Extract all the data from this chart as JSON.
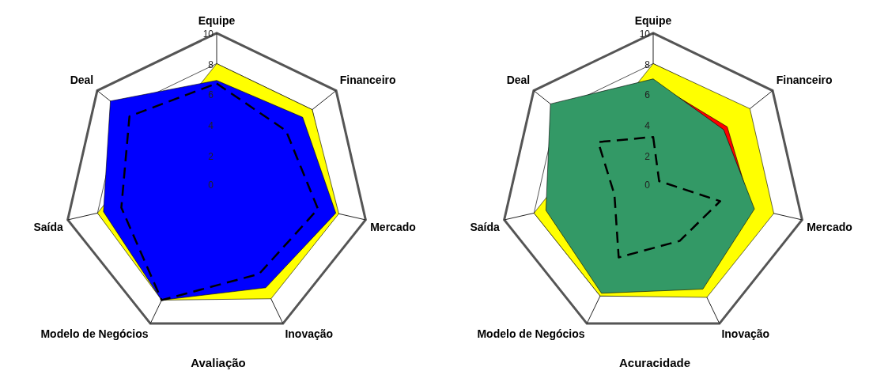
{
  "chart_data": [
    {
      "type": "radar",
      "title": "Avaliação",
      "categories": [
        "Equipe",
        "Financeiro",
        "Mercado",
        "Inovação",
        "Modelo de Negócios",
        "Saída",
        "Deal"
      ],
      "ylim": [
        0,
        10
      ],
      "yticks": [
        0,
        2,
        4,
        6,
        8,
        10
      ],
      "grid": true,
      "legend": false,
      "series": [
        {
          "color": "#ffff00",
          "values": [
            8,
            8,
            8.2,
            8.2,
            8.3,
            8,
            null
          ]
        },
        {
          "color": "#0000ff",
          "values": [
            6.9,
            7.2,
            8,
            7.4,
            8.3,
            7.6,
            8.9
          ]
        },
        {
          "color": "#000000",
          "line_style": "dashed",
          "values": [
            6.7,
            5.8,
            6.8,
            6.4,
            8.3,
            6.4,
            7.3
          ]
        }
      ]
    },
    {
      "type": "radar",
      "title": "Acuracidade",
      "categories": [
        "Equipe",
        "Financeiro",
        "Mercado",
        "Inovação",
        "Modelo de Negócios",
        "Saída",
        "Deal"
      ],
      "ylim": [
        0,
        10
      ],
      "yticks": [
        0,
        2,
        4,
        6,
        8,
        10
      ],
      "grid": true,
      "legend": false,
      "series": [
        {
          "color": "#ffff00",
          "values": [
            8,
            8.1,
            8.1,
            8.1,
            8,
            8,
            null
          ]
        },
        {
          "color": "#ff0000",
          "values": [
            6.8,
            6.2,
            6.6,
            7.3,
            7.6,
            7,
            8.4
          ]
        },
        {
          "color": "#339966",
          "values": [
            7,
            5.9,
            6.8,
            7.5,
            7.8,
            7.2,
            8.6
          ]
        },
        {
          "color": "#000000",
          "line_style": "dashed",
          "values": [
            3.2,
            0.5,
            4.5,
            4,
            5.2,
            2.6,
            4.6
          ]
        }
      ]
    }
  ]
}
